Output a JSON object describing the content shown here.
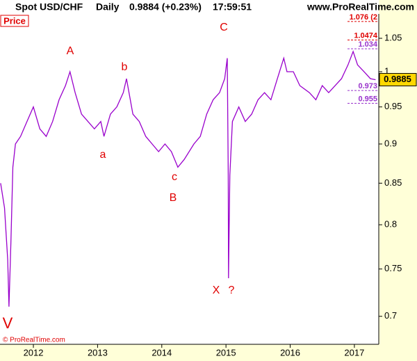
{
  "chart_data": {
    "type": "line",
    "title": "Spot USD/CHF",
    "interval": "Daily",
    "quote": "0.9884 (+0.23%)",
    "time": "17:59:51",
    "source": "www.ProRealTime.com",
    "copyright": "© ProRealTime.com",
    "ylabel": "Price",
    "color": "#9900cc",
    "log_y": true,
    "x": [
      2011.49,
      2011.55,
      2011.6,
      2011.62,
      2011.65,
      2011.68,
      2011.72,
      2011.8,
      2011.9,
      2012.0,
      2012.1,
      2012.2,
      2012.3,
      2012.4,
      2012.5,
      2012.57,
      2012.65,
      2012.75,
      2012.85,
      2012.95,
      2013.05,
      2013.1,
      2013.2,
      2013.3,
      2013.4,
      2013.45,
      2013.55,
      2013.65,
      2013.75,
      2013.85,
      2013.95,
      2014.05,
      2014.15,
      2014.25,
      2014.35,
      2014.5,
      2014.6,
      2014.7,
      2014.8,
      2014.9,
      2014.98,
      2015.02,
      2015.035,
      2015.04,
      2015.06,
      2015.1,
      2015.2,
      2015.3,
      2015.4,
      2015.5,
      2015.6,
      2015.7,
      2015.8,
      2015.9,
      2015.95,
      2016.05,
      2016.15,
      2016.3,
      2016.4,
      2016.5,
      2016.6,
      2016.7,
      2016.8,
      2016.9,
      2016.98,
      2017.05,
      2017.15,
      2017.25,
      2017.33
    ],
    "values": [
      0.85,
      0.82,
      0.76,
      0.71,
      0.78,
      0.87,
      0.9,
      0.91,
      0.93,
      0.95,
      0.92,
      0.91,
      0.93,
      0.96,
      0.98,
      1.0,
      0.97,
      0.94,
      0.93,
      0.92,
      0.93,
      0.91,
      0.94,
      0.95,
      0.97,
      0.99,
      0.94,
      0.93,
      0.91,
      0.9,
      0.89,
      0.9,
      0.89,
      0.87,
      0.88,
      0.9,
      0.91,
      0.94,
      0.96,
      0.97,
      0.99,
      1.02,
      0.86,
      0.74,
      0.86,
      0.93,
      0.95,
      0.93,
      0.94,
      0.96,
      0.97,
      0.96,
      0.99,
      1.02,
      1.0,
      1.0,
      0.98,
      0.97,
      0.96,
      0.98,
      0.97,
      0.98,
      0.99,
      1.01,
      1.03,
      1.01,
      1.0,
      0.99,
      0.9884
    ],
    "xlim": [
      2011.48,
      2017.38
    ],
    "xticks": [
      2012,
      2013,
      2014,
      2015,
      2016,
      2017
    ],
    "ylim": [
      0.672,
      1.088
    ],
    "yticks": [
      0.7,
      0.75,
      0.8,
      0.85,
      0.9,
      0.95,
      1,
      1.05
    ],
    "last_price": 0.9885,
    "levels": [
      {
        "value": 1.076,
        "label": "1.076 (2",
        "color": "#e00000"
      },
      {
        "value": 1.0474,
        "color": "#e00000"
      },
      {
        "value": 1.034,
        "color": "#9933cc"
      },
      {
        "value": 0.973,
        "color": "#9933cc"
      },
      {
        "value": 0.955,
        "color": "#9933cc"
      }
    ],
    "annotations": [
      "V",
      "A",
      "a",
      "b",
      "c",
      "B",
      "C",
      "X",
      "?"
    ]
  }
}
